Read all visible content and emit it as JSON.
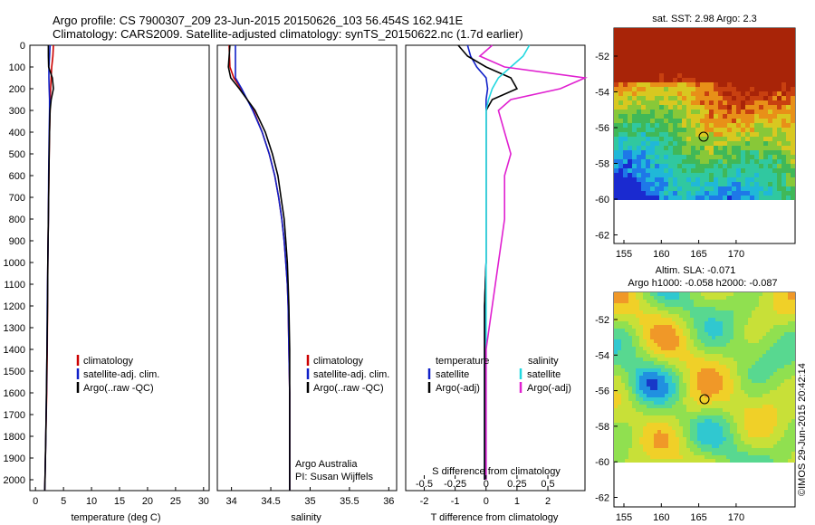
{
  "header": {
    "line1": "Argo profile: CS 7900307_209 23-Jun-2015 20150626_103 56.454S 162.941E",
    "line2": "Climatology: CARS2009. Satellite-adjusted climatology: synTS_20150622.nc (1.7d earlier)"
  },
  "watermark": "©IMOS 29-Jun-2015 20:42:14",
  "colors": {
    "climatology": "#cc0000",
    "satellite": "#1020c8",
    "argo": "#000000",
    "sal_satellite": "#22d8e0",
    "sal_argo": "#e020d0"
  },
  "panels": {
    "temperature": {
      "xlabel": "temperature (deg C)",
      "xticks": [
        0,
        5,
        10,
        15,
        20,
        25,
        30
      ],
      "legend": [
        "climatology",
        "satellite-adj. clim.",
        "Argo(..raw -QC)"
      ]
    },
    "salinity": {
      "xlabel": "salinity",
      "xticks": [
        "34",
        "34.5",
        "35",
        "35.5",
        "36"
      ],
      "legend": [
        "climatology",
        "satellite-adj. clim.",
        "Argo(..raw -QC)"
      ],
      "note1": "Argo Australia",
      "note2": "PI: Susan Wijffels"
    },
    "difference": {
      "xlabel": "T difference from climatology",
      "top_label": "S difference from climatology",
      "xticks": [
        "-2",
        "-1",
        "0",
        "1",
        "2"
      ],
      "top_ticks": [
        "-0.5",
        "-0.25",
        "0",
        "0.25",
        "0.5"
      ],
      "legend_t_title": "temperature",
      "legend_s_title": "salinity",
      "legend_t": [
        "satellite",
        "Argo(-adj)"
      ],
      "legend_s": [
        "satellite",
        "Argo(-adj)"
      ]
    },
    "depth_ticks": [
      0,
      100,
      200,
      300,
      400,
      500,
      600,
      700,
      800,
      900,
      1000,
      1100,
      1200,
      1300,
      1400,
      1500,
      1600,
      1700,
      1800,
      1900,
      2000
    ]
  },
  "maps": {
    "sst": {
      "title": "sat. SST: 2.98 Argo: 2.3",
      "lat_ticks": [
        "-52",
        "-54",
        "-56",
        "-58",
        "-60",
        "-62"
      ],
      "lon_ticks": [
        "155",
        "160",
        "165",
        "170"
      ]
    },
    "sla": {
      "title1": "Altim. SLA: -0.071",
      "title2": "Argo h1000: -0.058 h2000: -0.087",
      "lat_ticks": [
        "-52",
        "-54",
        "-56",
        "-58",
        "-60",
        "-62"
      ],
      "lon_ticks": [
        "155",
        "160",
        "165",
        "170"
      ]
    }
  },
  "chart_data": [
    {
      "type": "line",
      "xlabel": "temperature (deg C)",
      "ylabel": "",
      "xlim": [
        -1,
        31
      ],
      "ylim": [
        2050,
        0
      ],
      "depth": [
        0,
        50,
        100,
        150,
        200,
        250,
        300,
        400,
        500,
        600,
        800,
        1000,
        1200,
        1400,
        1600,
        1800,
        2000,
        2050
      ],
      "series": [
        {
          "name": "climatology",
          "values": [
            3.2,
            3.1,
            2.9,
            2.8,
            2.7,
            2.6,
            2.6,
            2.5,
            2.45,
            2.4,
            2.3,
            2.2,
            2.15,
            2.1,
            2.0,
            1.85,
            1.7,
            1.65
          ]
        },
        {
          "name": "satellite-adj. clim.",
          "values": [
            2.6,
            2.5,
            2.4,
            2.4,
            2.45,
            2.5,
            2.5,
            2.45,
            2.4,
            2.35,
            2.3,
            2.2,
            2.1,
            2.05,
            1.95,
            1.85,
            1.7,
            1.65
          ]
        },
        {
          "name": "Argo(..raw -QC)",
          "values": [
            2.3,
            2.3,
            2.35,
            3.0,
            3.2,
            2.8,
            2.6,
            2.5,
            2.45,
            2.4,
            2.3,
            2.2,
            2.15,
            2.05,
            1.95,
            1.85,
            1.7,
            1.65
          ]
        }
      ]
    },
    {
      "type": "line",
      "xlabel": "salinity",
      "ylabel": "",
      "xlim": [
        33.82,
        36.1
      ],
      "ylim": [
        2050,
        0
      ],
      "depth": [
        0,
        100,
        150,
        200,
        300,
        400,
        500,
        600,
        700,
        800,
        900,
        1000,
        1100,
        1200,
        1400,
        1600,
        1800,
        2000,
        2050
      ],
      "series": [
        {
          "name": "climatology",
          "values": [
            33.97,
            33.98,
            34.03,
            34.12,
            34.28,
            34.39,
            34.48,
            34.55,
            34.6,
            34.64,
            34.67,
            34.69,
            34.71,
            34.72,
            34.73,
            34.74,
            34.74,
            34.74,
            34.74
          ]
        },
        {
          "name": "satellite-adj. clim.",
          "values": [
            34.05,
            34.05,
            34.05,
            34.13,
            34.27,
            34.39,
            34.48,
            34.55,
            34.6,
            34.64,
            34.67,
            34.69,
            34.71,
            34.72,
            34.73,
            34.74,
            34.74,
            34.74,
            34.74
          ]
        },
        {
          "name": "Argo(..raw -QC)",
          "values": [
            33.98,
            33.96,
            33.99,
            34.1,
            34.3,
            34.43,
            34.52,
            34.59,
            34.63,
            34.67,
            34.69,
            34.71,
            34.72,
            34.73,
            34.74,
            34.74,
            34.74,
            34.74,
            34.74
          ]
        }
      ]
    },
    {
      "type": "line",
      "xlabel": "T difference from climatology",
      "ylabel": "",
      "xlim": [
        -2.6,
        3.2
      ],
      "ylim": [
        2050,
        0
      ],
      "depth": [
        0,
        50,
        100,
        150,
        200,
        250,
        300,
        400,
        500,
        600,
        800,
        1000,
        1200,
        1400,
        1600,
        1800,
        2000
      ],
      "series": [
        {
          "name": "temperature satellite",
          "values": [
            -0.6,
            -0.5,
            -0.3,
            0.0,
            0.05,
            0.0,
            0.0,
            0.0,
            0.0,
            0.0,
            0.0,
            0.0,
            -0.05,
            -0.05,
            -0.05,
            -0.05,
            -0.05
          ]
        },
        {
          "name": "temperature Argo(-adj)",
          "values": [
            -0.9,
            -0.6,
            0.0,
            0.8,
            1.0,
            0.2,
            0.0,
            0.0,
            0.0,
            0.0,
            0.0,
            0.0,
            -0.05,
            -0.05,
            -0.05,
            -0.05,
            -0.05
          ]
        },
        {
          "name": "salinity satellite",
          "values": [
            0.35,
            0.3,
            0.2,
            0.1,
            0.05,
            0.02,
            0.0,
            0.0,
            0.0,
            0.0,
            0.0,
            0.0,
            0.0,
            0.0,
            0.0,
            0.0,
            0.0
          ]
        },
        {
          "name": "salinity Argo(-adj)",
          "values": [
            0.05,
            -0.05,
            0.15,
            0.8,
            0.6,
            0.2,
            0.1,
            0.15,
            0.2,
            0.15,
            0.15,
            0.1,
            0.05,
            0.0,
            0.0,
            0.0,
            0.0
          ]
        }
      ]
    }
  ]
}
